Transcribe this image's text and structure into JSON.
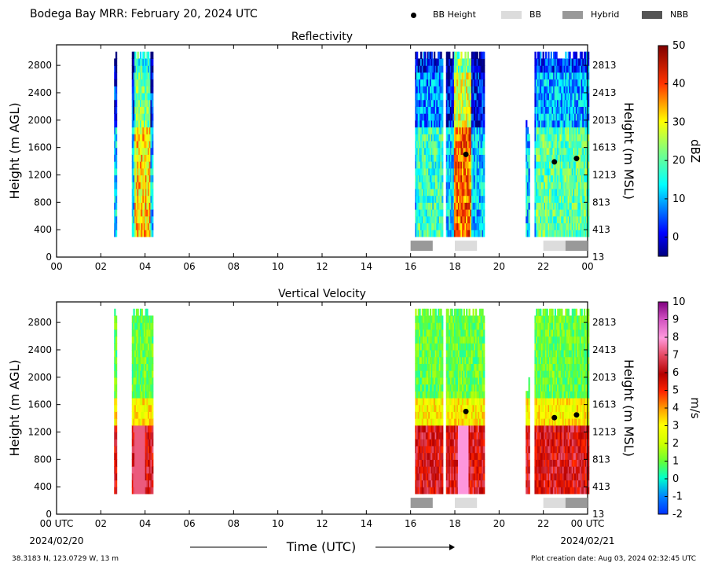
{
  "header": {
    "title": "Bodega Bay MRR:  February 20, 2024 UTC"
  },
  "legend": {
    "items": [
      {
        "label": "BB Height",
        "marker": "dot",
        "color": "#000000"
      },
      {
        "label": "BB",
        "marker": "box",
        "color": "#dcdcdc"
      },
      {
        "label": "Hybrid",
        "marker": "box",
        "color": "#999999"
      },
      {
        "label": "NBB",
        "marker": "box",
        "color": "#555555"
      }
    ]
  },
  "footer": {
    "location": "38.3183 N, 123.0729 W, 13 m",
    "created": "Plot creation date: Aug 03, 2024 02:32:45 UTC"
  },
  "chart_data": [
    {
      "type": "heatmap",
      "title": "Reflectivity",
      "ylabel": "Height (m AGL)",
      "y2label": "Height (m MSL)",
      "colorbar_label": "dBZ",
      "ylim": [
        0,
        3100
      ],
      "xlim": [
        0,
        24
      ],
      "x_ticks": [
        "00",
        "02",
        "04",
        "06",
        "08",
        "10",
        "12",
        "14",
        "16",
        "18",
        "20",
        "22",
        "00"
      ],
      "y_ticks": [
        "0",
        "400",
        "800",
        "1200",
        "1600",
        "2000",
        "2400",
        "2800"
      ],
      "y2_ticks": [
        "13",
        "413",
        "813",
        "1213",
        "1613",
        "2013",
        "2413",
        "2813"
      ],
      "colorbar_ticks": [
        "50",
        "40",
        "30",
        "20",
        "10",
        "0"
      ],
      "colorbar_range": [
        -5,
        50
      ],
      "bb_height": [
        {
          "x": 18.5,
          "y": 1500
        },
        {
          "x": 22.5,
          "y": 1390
        },
        {
          "x": 23.5,
          "y": 1440
        }
      ],
      "bb_segments": [
        {
          "start": 16.0,
          "end": 17.0,
          "type": "Hybrid"
        },
        {
          "start": 18.0,
          "end": 19.0,
          "type": "BB"
        },
        {
          "start": 22.0,
          "end": 23.0,
          "type": "BB"
        },
        {
          "start": 23.0,
          "end": 24.0,
          "type": "Hybrid"
        }
      ]
    },
    {
      "type": "heatmap",
      "title": "Vertical Velocity",
      "ylabel": "Height (m AGL)",
      "y2label": "Height (m MSL)",
      "colorbar_label": "m/s",
      "ylim": [
        0,
        3100
      ],
      "xlim": [
        0,
        24
      ],
      "x_ticks": [
        "00 UTC",
        "02",
        "04",
        "06",
        "08",
        "10",
        "12",
        "14",
        "16",
        "18",
        "20",
        "22",
        "00 UTC"
      ],
      "x_date_left": "2024/02/20",
      "x_date_right": "2024/02/21",
      "xlabel": "Time (UTC)",
      "y_ticks": [
        "0",
        "400",
        "800",
        "1200",
        "1600",
        "2000",
        "2400",
        "2800"
      ],
      "y2_ticks": [
        "13",
        "413",
        "813",
        "1213",
        "1613",
        "2013",
        "2413",
        "2813"
      ],
      "colorbar_ticks": [
        "10",
        "9",
        "8",
        "7",
        "6",
        "5",
        "4",
        "3",
        "2",
        "1",
        "0",
        "-1",
        "-2"
      ],
      "colorbar_range": [
        -2,
        10
      ],
      "bb_height": [
        {
          "x": 18.5,
          "y": 1500
        },
        {
          "x": 22.5,
          "y": 1410
        },
        {
          "x": 23.5,
          "y": 1450
        }
      ],
      "bb_segments": [
        {
          "start": 16.0,
          "end": 17.0,
          "type": "Hybrid"
        },
        {
          "start": 18.0,
          "end": 19.0,
          "type": "BB"
        },
        {
          "start": 22.0,
          "end": 23.0,
          "type": "BB"
        },
        {
          "start": 23.0,
          "end": 24.0,
          "type": "Hybrid"
        }
      ]
    }
  ]
}
